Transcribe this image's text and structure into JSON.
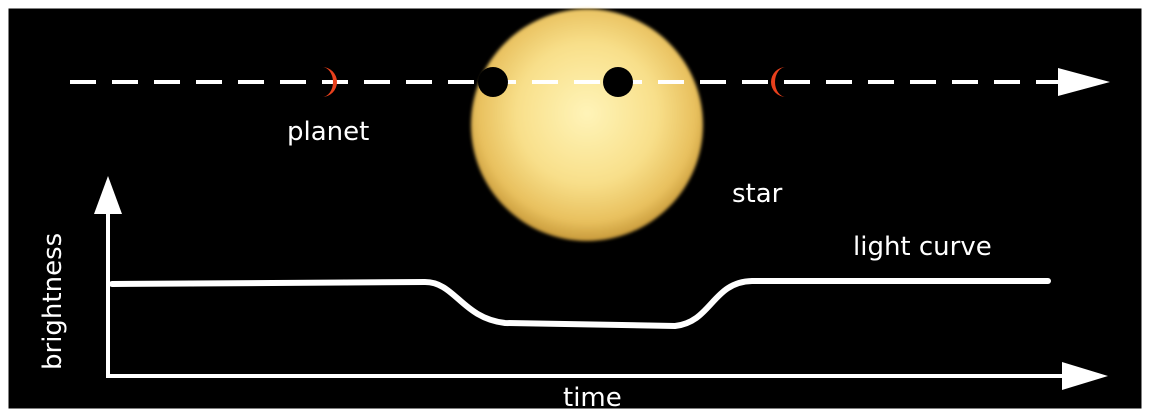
{
  "labels": {
    "planet": "planet",
    "star": "star",
    "light_curve": "light curve",
    "y_axis": "brightness",
    "x_axis": "time"
  },
  "colors": {
    "background": "#000000",
    "frame": "#ffffff",
    "orbit_line": "#ffffff",
    "planet_crescent": "#e8401c",
    "planet_disk": "#000000",
    "star_center": "#fff2b0",
    "star_edge": "#d9b048",
    "curve": "#ffffff"
  },
  "icons": {
    "orbit_arrow": "arrowhead-right",
    "axis_arrows": "arrowhead"
  }
}
